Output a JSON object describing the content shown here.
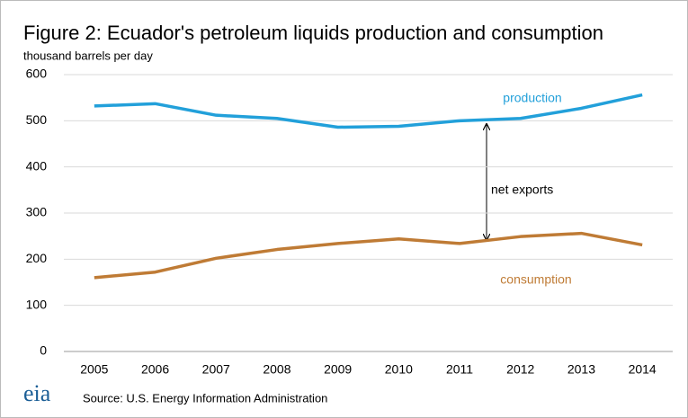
{
  "chart_data": {
    "type": "line",
    "title": "Figure 2:  Ecuador's petroleum liquids production and consumption",
    "subtitle": "thousand barrels per day",
    "categories": [
      "2005",
      "2006",
      "2007",
      "2008",
      "2009",
      "2010",
      "2011",
      "2012",
      "2013",
      "2014"
    ],
    "series": [
      {
        "name": "production",
        "color": "#22a0da",
        "values": [
          532,
          537,
          512,
          505,
          486,
          488,
          500,
          505,
          527,
          556
        ]
      },
      {
        "name": "consumption",
        "color": "#bf7b35",
        "values": [
          160,
          172,
          202,
          221,
          234,
          244,
          234,
          249,
          256,
          231
        ]
      }
    ],
    "ylim": [
      0,
      600
    ],
    "yticks": [
      0,
      100,
      200,
      300,
      400,
      500,
      600
    ],
    "grid": true,
    "annotations": [
      "net exports"
    ],
    "logo": "eia",
    "source": "Source: U.S. Energy Information Administration"
  }
}
